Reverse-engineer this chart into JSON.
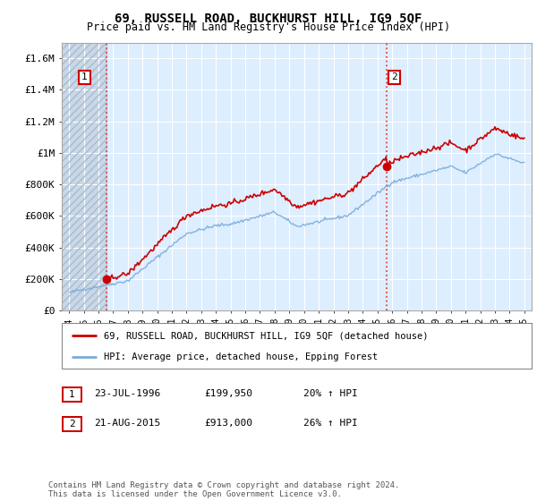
{
  "title": "69, RUSSELL ROAD, BUCKHURST HILL, IG9 5QF",
  "subtitle": "Price paid vs. HM Land Registry's House Price Index (HPI)",
  "property_label": "69, RUSSELL ROAD, BUCKHURST HILL, IG9 5QF (detached house)",
  "hpi_label": "HPI: Average price, detached house, Epping Forest",
  "annotation1_date": "23-JUL-1996",
  "annotation1_price": "£199,950",
  "annotation1_hpi": "20% ↑ HPI",
  "annotation2_date": "21-AUG-2015",
  "annotation2_price": "£913,000",
  "annotation2_hpi": "26% ↑ HPI",
  "footer": "Contains HM Land Registry data © Crown copyright and database right 2024.\nThis data is licensed under the Open Government Licence v3.0.",
  "property_color": "#cc0000",
  "hpi_color": "#7aabdb",
  "sale1_x": 1996.55,
  "sale1_y": 199950,
  "sale2_x": 2015.64,
  "sale2_y": 913000,
  "ylim": [
    0,
    1700000
  ],
  "xlim": [
    1993.5,
    2025.5
  ],
  "yticks": [
    0,
    200000,
    400000,
    600000,
    800000,
    1000000,
    1200000,
    1400000,
    1600000
  ],
  "ytick_labels": [
    "£0",
    "£200K",
    "£400K",
    "£600K",
    "£800K",
    "£1M",
    "£1.2M",
    "£1.4M",
    "£1.6M"
  ],
  "xticks": [
    1994,
    1995,
    1996,
    1997,
    1998,
    1999,
    2000,
    2001,
    2002,
    2003,
    2004,
    2005,
    2006,
    2007,
    2008,
    2009,
    2010,
    2011,
    2012,
    2013,
    2014,
    2015,
    2016,
    2017,
    2018,
    2019,
    2020,
    2021,
    2022,
    2023,
    2024,
    2025
  ],
  "bg_color": "#ffffff",
  "plot_bg_color": "#ddeeff",
  "grid_color": "#ffffff",
  "hatch_area_color": "#c8d8e8"
}
